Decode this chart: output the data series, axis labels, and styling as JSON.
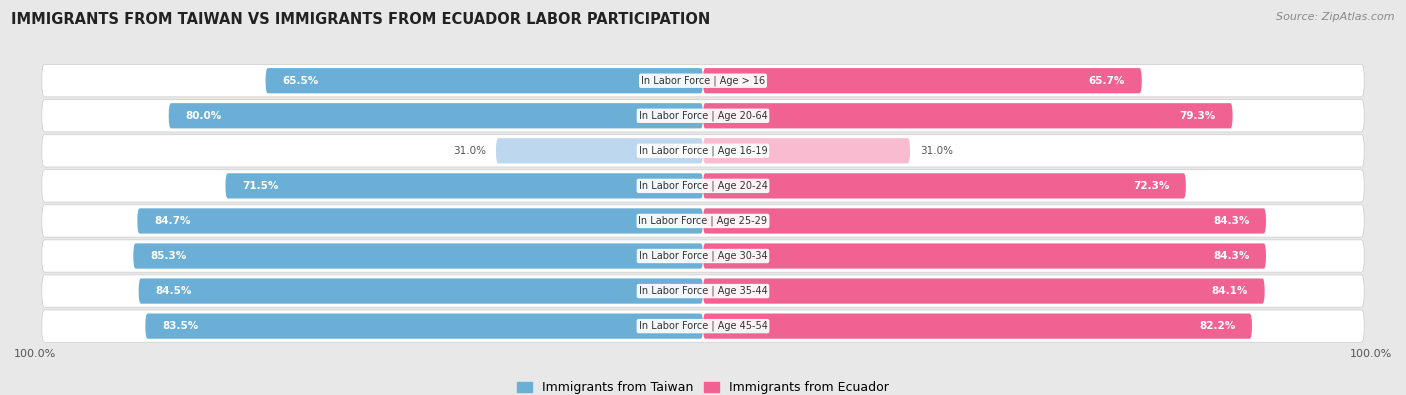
{
  "title": "IMMIGRANTS FROM TAIWAN VS IMMIGRANTS FROM ECUADOR LABOR PARTICIPATION",
  "source": "Source: ZipAtlas.com",
  "categories": [
    "In Labor Force | Age > 16",
    "In Labor Force | Age 20-64",
    "In Labor Force | Age 16-19",
    "In Labor Force | Age 20-24",
    "In Labor Force | Age 25-29",
    "In Labor Force | Age 30-34",
    "In Labor Force | Age 35-44",
    "In Labor Force | Age 45-54"
  ],
  "taiwan_values": [
    65.5,
    80.0,
    31.0,
    71.5,
    84.7,
    85.3,
    84.5,
    83.5
  ],
  "ecuador_values": [
    65.7,
    79.3,
    31.0,
    72.3,
    84.3,
    84.3,
    84.1,
    82.2
  ],
  "taiwan_color": "#6baed6",
  "taiwan_color_light": "#bdd7ee",
  "ecuador_color": "#f06292",
  "ecuador_color_light": "#f8bbd0",
  "bg_color": "#e8e8e8",
  "row_bg": "#f5f5f5",
  "max_value": 100.0,
  "legend_taiwan": "Immigrants from Taiwan",
  "legend_ecuador": "Immigrants from Ecuador"
}
